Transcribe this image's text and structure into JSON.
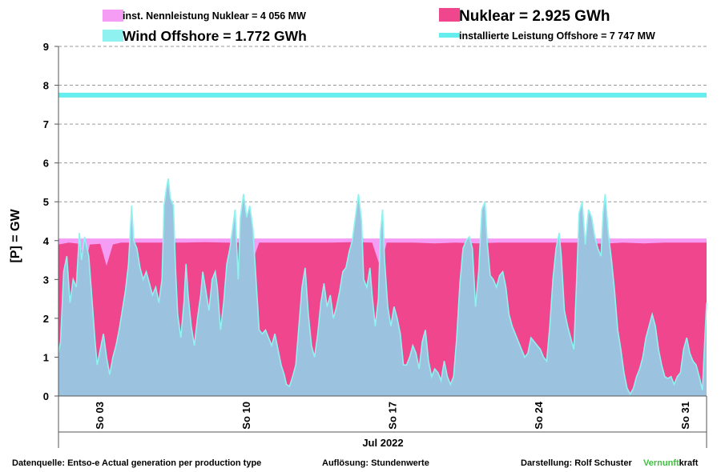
{
  "chart_data": {
    "type": "area",
    "ylabel": "[P]  = GW",
    "xlabel": "Jul 2022",
    "ylim": [
      0,
      9
    ],
    "yticks": [
      0,
      1,
      2,
      3,
      4,
      5,
      6,
      7,
      8,
      9
    ],
    "grid": "horizontal dashed",
    "x_tick_labels": [
      {
        "label": "So 03",
        "day": 3
      },
      {
        "label": "So 10",
        "day": 10
      },
      {
        "label": "So 17",
        "day": 17
      },
      {
        "label": "So 24",
        "day": 24
      },
      {
        "label": "So 31",
        "day": 31
      }
    ],
    "x_range_days": [
      1,
      32
    ],
    "legend": [
      {
        "text": "inst. Nennleistung Nuklear =  4 056 MW",
        "color": "#f59cf5"
      },
      {
        "text": "Nuklear  =  2.925 GWh",
        "color": "#f0468e"
      },
      {
        "text": "Wind Offshore  = 1.772 GWh",
        "color": "#8ff2f0"
      },
      {
        "text": "installierte Leistung Offshore  =  7 747 MW",
        "color": "#66eeee"
      }
    ],
    "reference_lines": [
      {
        "name": "installierte Leistung Offshore",
        "value": 7.747,
        "color": "#66eeee"
      },
      {
        "name": "inst. Nennleistung Nuklear",
        "value": 4.056,
        "color": "#f59cf5"
      }
    ],
    "series": [
      {
        "name": "Nuklear",
        "color": "#f0468e",
        "points": [
          [
            1.0,
            3.9
          ],
          [
            1.5,
            3.95
          ],
          [
            2.0,
            3.92
          ],
          [
            2.3,
            3.45
          ],
          [
            2.5,
            3.9
          ],
          [
            3.0,
            3.92
          ],
          [
            3.3,
            3.35
          ],
          [
            3.6,
            3.9
          ],
          [
            4.0,
            3.95
          ],
          [
            5.0,
            3.95
          ],
          [
            6.0,
            3.95
          ],
          [
            7.0,
            3.95
          ],
          [
            8.0,
            3.96
          ],
          [
            9.0,
            3.95
          ],
          [
            10.0,
            3.95
          ],
          [
            10.3,
            3.5
          ],
          [
            10.6,
            3.95
          ],
          [
            11.0,
            3.95
          ],
          [
            12.0,
            3.95
          ],
          [
            13.0,
            3.95
          ],
          [
            14.0,
            3.95
          ],
          [
            15.0,
            3.96
          ],
          [
            16.0,
            3.95
          ],
          [
            16.4,
            3.3
          ],
          [
            16.7,
            3.95
          ],
          [
            17.0,
            3.95
          ],
          [
            18.0,
            3.95
          ],
          [
            19.0,
            3.93
          ],
          [
            20.0,
            3.95
          ],
          [
            21.0,
            3.93
          ],
          [
            22.0,
            3.95
          ],
          [
            23.0,
            3.95
          ],
          [
            24.0,
            3.95
          ],
          [
            25.0,
            3.95
          ],
          [
            26.0,
            3.95
          ],
          [
            27.0,
            3.92
          ],
          [
            28.0,
            3.95
          ],
          [
            29.0,
            3.93
          ],
          [
            30.0,
            3.95
          ],
          [
            31.0,
            3.95
          ],
          [
            32.0,
            3.95
          ]
        ]
      },
      {
        "name": "Wind Offshore",
        "color": "#8ff2f0",
        "points": [
          [
            1.0,
            1.1
          ],
          [
            1.1,
            1.4
          ],
          [
            1.25,
            3.2
          ],
          [
            1.4,
            3.6
          ],
          [
            1.55,
            2.4
          ],
          [
            1.7,
            3.0
          ],
          [
            1.85,
            2.8
          ],
          [
            2.0,
            4.2
          ],
          [
            2.1,
            3.5
          ],
          [
            2.25,
            4.1
          ],
          [
            2.45,
            3.6
          ],
          [
            2.6,
            2.5
          ],
          [
            2.75,
            1.4
          ],
          [
            2.85,
            0.8
          ],
          [
            3.0,
            1.2
          ],
          [
            3.15,
            1.6
          ],
          [
            3.3,
            1.0
          ],
          [
            3.45,
            0.55
          ],
          [
            3.6,
            1.0
          ],
          [
            3.75,
            1.3
          ],
          [
            3.9,
            1.7
          ],
          [
            4.05,
            2.2
          ],
          [
            4.2,
            2.7
          ],
          [
            4.35,
            3.4
          ],
          [
            4.5,
            4.9
          ],
          [
            4.6,
            4.0
          ],
          [
            4.75,
            3.8
          ],
          [
            4.9,
            3.3
          ],
          [
            5.05,
            3.0
          ],
          [
            5.2,
            3.2
          ],
          [
            5.35,
            2.9
          ],
          [
            5.5,
            2.6
          ],
          [
            5.65,
            2.8
          ],
          [
            5.8,
            2.4
          ],
          [
            5.95,
            3.0
          ],
          [
            6.05,
            4.9
          ],
          [
            6.15,
            5.3
          ],
          [
            6.25,
            5.6
          ],
          [
            6.35,
            5.1
          ],
          [
            6.5,
            4.9
          ],
          [
            6.6,
            3.3
          ],
          [
            6.7,
            2.1
          ],
          [
            6.85,
            1.5
          ],
          [
            7.0,
            2.4
          ],
          [
            7.1,
            3.4
          ],
          [
            7.2,
            2.6
          ],
          [
            7.35,
            1.8
          ],
          [
            7.5,
            1.3
          ],
          [
            7.65,
            2.0
          ],
          [
            7.8,
            2.6
          ],
          [
            7.9,
            3.2
          ],
          [
            8.05,
            2.7
          ],
          [
            8.2,
            2.2
          ],
          [
            8.35,
            3.0
          ],
          [
            8.5,
            3.2
          ],
          [
            8.6,
            2.8
          ],
          [
            8.75,
            1.7
          ],
          [
            8.9,
            2.4
          ],
          [
            9.05,
            3.4
          ],
          [
            9.2,
            3.8
          ],
          [
            9.3,
            4.2
          ],
          [
            9.45,
            4.8
          ],
          [
            9.6,
            3.0
          ],
          [
            9.7,
            4.6
          ],
          [
            9.85,
            5.2
          ],
          [
            10.0,
            4.6
          ],
          [
            10.15,
            4.9
          ],
          [
            10.3,
            4.3
          ],
          [
            10.45,
            3.0
          ],
          [
            10.6,
            1.7
          ],
          [
            10.75,
            1.6
          ],
          [
            10.9,
            1.7
          ],
          [
            11.05,
            1.5
          ],
          [
            11.2,
            1.3
          ],
          [
            11.35,
            1.6
          ],
          [
            11.5,
            1.2
          ],
          [
            11.65,
            0.8
          ],
          [
            11.8,
            0.55
          ],
          [
            11.9,
            0.3
          ],
          [
            12.05,
            0.25
          ],
          [
            12.2,
            0.5
          ],
          [
            12.35,
            0.8
          ],
          [
            12.5,
            1.8
          ],
          [
            12.65,
            2.8
          ],
          [
            12.8,
            3.3
          ],
          [
            12.95,
            2.1
          ],
          [
            13.1,
            1.3
          ],
          [
            13.25,
            1.0
          ],
          [
            13.4,
            1.6
          ],
          [
            13.55,
            2.4
          ],
          [
            13.7,
            2.9
          ],
          [
            13.85,
            2.3
          ],
          [
            14.0,
            2.6
          ],
          [
            14.15,
            2.0
          ],
          [
            14.3,
            2.3
          ],
          [
            14.45,
            2.7
          ],
          [
            14.6,
            3.2
          ],
          [
            14.75,
            3.3
          ],
          [
            14.9,
            3.7
          ],
          [
            15.05,
            4.0
          ],
          [
            15.2,
            4.6
          ],
          [
            15.35,
            5.2
          ],
          [
            15.5,
            4.5
          ],
          [
            15.6,
            3.0
          ],
          [
            15.75,
            2.8
          ],
          [
            15.9,
            3.3
          ],
          [
            16.0,
            2.6
          ],
          [
            16.15,
            1.8
          ],
          [
            16.3,
            2.5
          ],
          [
            16.4,
            4.2
          ],
          [
            16.5,
            4.8
          ],
          [
            16.6,
            3.5
          ],
          [
            16.75,
            2.3
          ],
          [
            16.9,
            1.8
          ],
          [
            17.05,
            2.3
          ],
          [
            17.2,
            2.0
          ],
          [
            17.35,
            1.6
          ],
          [
            17.5,
            0.8
          ],
          [
            17.65,
            0.8
          ],
          [
            17.8,
            1.0
          ],
          [
            17.95,
            1.3
          ],
          [
            18.1,
            1.1
          ],
          [
            18.25,
            0.7
          ],
          [
            18.4,
            1.4
          ],
          [
            18.55,
            1.7
          ],
          [
            18.7,
            0.9
          ],
          [
            18.85,
            0.5
          ],
          [
            19.0,
            0.7
          ],
          [
            19.15,
            0.6
          ],
          [
            19.3,
            0.4
          ],
          [
            19.45,
            0.9
          ],
          [
            19.6,
            0.5
          ],
          [
            19.75,
            0.3
          ],
          [
            19.9,
            0.5
          ],
          [
            20.05,
            1.5
          ],
          [
            20.2,
            2.9
          ],
          [
            20.35,
            3.8
          ],
          [
            20.5,
            4.0
          ],
          [
            20.65,
            4.1
          ],
          [
            20.8,
            3.8
          ],
          [
            20.95,
            2.3
          ],
          [
            21.1,
            3.2
          ],
          [
            21.25,
            4.8
          ],
          [
            21.4,
            5.0
          ],
          [
            21.5,
            4.0
          ],
          [
            21.65,
            3.1
          ],
          [
            21.8,
            3.0
          ],
          [
            21.95,
            2.8
          ],
          [
            22.1,
            3.1
          ],
          [
            22.25,
            3.2
          ],
          [
            22.4,
            2.8
          ],
          [
            22.55,
            2.1
          ],
          [
            22.7,
            1.8
          ],
          [
            22.85,
            1.6
          ],
          [
            23.0,
            1.4
          ],
          [
            23.15,
            1.2
          ],
          [
            23.3,
            1.0
          ],
          [
            23.45,
            1.1
          ],
          [
            23.6,
            1.5
          ],
          [
            23.75,
            1.4
          ],
          [
            23.9,
            1.3
          ],
          [
            24.05,
            1.2
          ],
          [
            24.2,
            1.0
          ],
          [
            24.35,
            0.9
          ],
          [
            24.5,
            1.8
          ],
          [
            24.65,
            3.0
          ],
          [
            24.8,
            3.8
          ],
          [
            24.95,
            4.2
          ],
          [
            25.05,
            3.6
          ],
          [
            25.2,
            2.2
          ],
          [
            25.35,
            1.8
          ],
          [
            25.5,
            1.5
          ],
          [
            25.65,
            1.2
          ],
          [
            25.8,
            3.2
          ],
          [
            25.9,
            4.7
          ],
          [
            26.05,
            5.0
          ],
          [
            26.2,
            3.9
          ],
          [
            26.35,
            4.8
          ],
          [
            26.5,
            4.6
          ],
          [
            26.65,
            4.1
          ],
          [
            26.8,
            3.8
          ],
          [
            26.95,
            3.6
          ],
          [
            27.05,
            4.7
          ],
          [
            27.15,
            5.2
          ],
          [
            27.3,
            4.2
          ],
          [
            27.45,
            3.5
          ],
          [
            27.6,
            2.7
          ],
          [
            27.75,
            1.7
          ],
          [
            27.9,
            1.2
          ],
          [
            28.05,
            0.6
          ],
          [
            28.2,
            0.2
          ],
          [
            28.35,
            0.05
          ],
          [
            28.5,
            0.2
          ],
          [
            28.65,
            0.5
          ],
          [
            28.8,
            0.7
          ],
          [
            28.95,
            1.0
          ],
          [
            29.1,
            1.5
          ],
          [
            29.25,
            1.8
          ],
          [
            29.4,
            2.1
          ],
          [
            29.55,
            1.8
          ],
          [
            29.7,
            1.2
          ],
          [
            29.85,
            0.8
          ],
          [
            30.0,
            0.5
          ],
          [
            30.15,
            0.45
          ],
          [
            30.3,
            0.5
          ],
          [
            30.45,
            0.3
          ],
          [
            30.6,
            0.5
          ],
          [
            30.75,
            0.6
          ],
          [
            30.9,
            1.2
          ],
          [
            31.05,
            1.5
          ],
          [
            31.2,
            1.1
          ],
          [
            31.35,
            0.9
          ],
          [
            31.5,
            0.8
          ],
          [
            31.65,
            0.5
          ],
          [
            31.8,
            0.15
          ],
          [
            31.9,
            1.3
          ],
          [
            32.0,
            2.4
          ]
        ]
      }
    ]
  },
  "footer": {
    "source": "Datenquelle: Entso-e  Actual generation per production type",
    "resolution": "Auflösung: Stundenwerte",
    "author": "Darstellung:  Rolf Schuster",
    "brand_green": "Vernunft",
    "brand_rest": "kraft",
    "brand_green_color": "#3cc13c"
  }
}
